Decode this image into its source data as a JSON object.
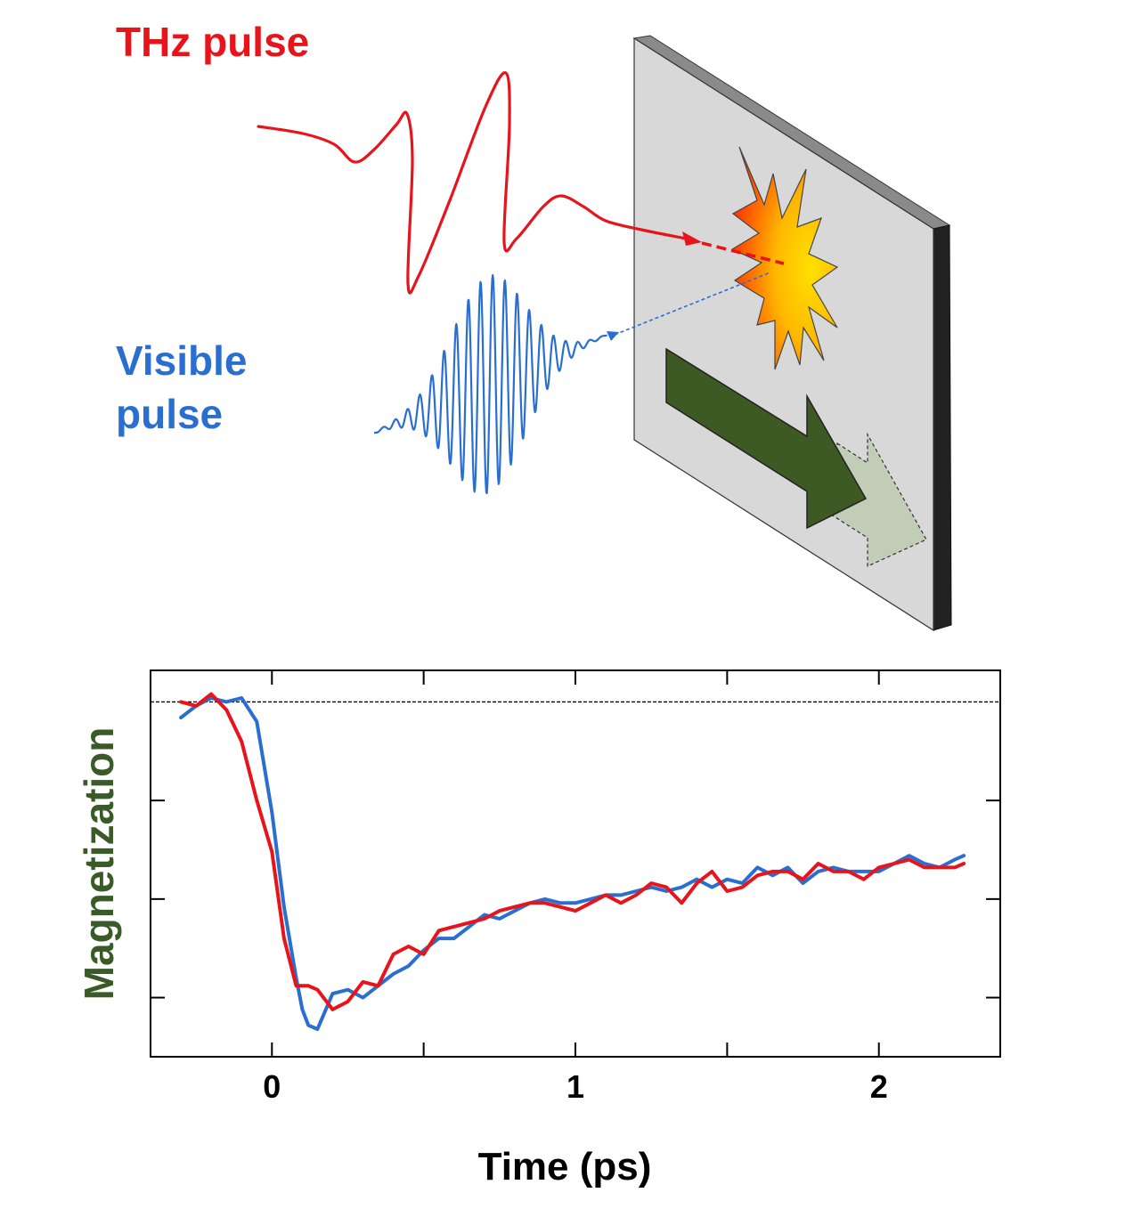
{
  "labels": {
    "thz": "THz pulse",
    "visible_line1": "Visible",
    "visible_line2": "pulse"
  },
  "colors": {
    "thz": "#e8141c",
    "visible": "#2a6fd0",
    "magnetization": "#3a5a28",
    "arrow_main": "#3d5a24",
    "arrow_ghost": "#c2cdb8",
    "plate_face": "#d8d8d8",
    "plate_edge": "#222222"
  },
  "chart_data": {
    "type": "line",
    "xlabel": "Time (ps)",
    "ylabel": "Magnetization",
    "xlim": [
      -0.4,
      2.4
    ],
    "x_ticks": [
      0,
      1,
      2
    ],
    "x_tick_labels": [
      "0",
      "1",
      "2"
    ],
    "x_minor_ticks": [
      0.5,
      1.5
    ],
    "ylim": [
      0.1,
      1.08
    ],
    "y_ticks": [
      0.25,
      0.5,
      0.75
    ],
    "reference_line": 1.0,
    "series": [
      {
        "color": "blue",
        "x": [
          -0.3,
          -0.25,
          -0.2,
          -0.15,
          -0.1,
          -0.05,
          0,
          0.04,
          0.08,
          0.1,
          0.12,
          0.15,
          0.2,
          0.25,
          0.3,
          0.35,
          0.4,
          0.45,
          0.5,
          0.55,
          0.6,
          0.65,
          0.7,
          0.75,
          0.8,
          0.85,
          0.9,
          0.95,
          1.0,
          1.05,
          1.1,
          1.15,
          1.2,
          1.25,
          1.3,
          1.35,
          1.4,
          1.45,
          1.5,
          1.55,
          1.6,
          1.65,
          1.7,
          1.75,
          1.8,
          1.85,
          1.9,
          1.95,
          2.0,
          2.05,
          2.1,
          2.15,
          2.2,
          2.25,
          2.28
        ],
        "y": [
          0.96,
          0.99,
          1.01,
          1.0,
          1.01,
          0.95,
          0.72,
          0.48,
          0.3,
          0.22,
          0.18,
          0.17,
          0.26,
          0.27,
          0.25,
          0.28,
          0.31,
          0.33,
          0.37,
          0.4,
          0.4,
          0.43,
          0.46,
          0.45,
          0.47,
          0.49,
          0.5,
          0.49,
          0.49,
          0.5,
          0.51,
          0.51,
          0.52,
          0.53,
          0.52,
          0.53,
          0.55,
          0.53,
          0.55,
          0.54,
          0.58,
          0.56,
          0.58,
          0.54,
          0.57,
          0.58,
          0.57,
          0.57,
          0.57,
          0.59,
          0.61,
          0.59,
          0.58,
          0.6,
          0.61
        ]
      },
      {
        "color": "red",
        "x": [
          -0.3,
          -0.25,
          -0.2,
          -0.15,
          -0.1,
          -0.05,
          0,
          0.04,
          0.08,
          0.12,
          0.15,
          0.2,
          0.25,
          0.3,
          0.35,
          0.4,
          0.45,
          0.5,
          0.55,
          0.6,
          0.65,
          0.7,
          0.75,
          0.8,
          0.85,
          0.9,
          0.95,
          1.0,
          1.05,
          1.1,
          1.15,
          1.2,
          1.25,
          1.3,
          1.35,
          1.4,
          1.45,
          1.5,
          1.55,
          1.6,
          1.65,
          1.7,
          1.75,
          1.8,
          1.85,
          1.9,
          1.95,
          2.0,
          2.05,
          2.1,
          2.15,
          2.2,
          2.25,
          2.28
        ],
        "y": [
          1.0,
          0.99,
          1.02,
          0.98,
          0.9,
          0.75,
          0.62,
          0.4,
          0.28,
          0.28,
          0.27,
          0.22,
          0.24,
          0.29,
          0.28,
          0.36,
          0.38,
          0.36,
          0.42,
          0.43,
          0.44,
          0.45,
          0.47,
          0.48,
          0.49,
          0.49,
          0.48,
          0.47,
          0.49,
          0.51,
          0.49,
          0.51,
          0.54,
          0.53,
          0.49,
          0.54,
          0.57,
          0.52,
          0.53,
          0.56,
          0.57,
          0.57,
          0.55,
          0.59,
          0.57,
          0.57,
          0.55,
          0.58,
          0.59,
          0.6,
          0.58,
          0.58,
          0.58,
          0.59
        ]
      }
    ]
  }
}
